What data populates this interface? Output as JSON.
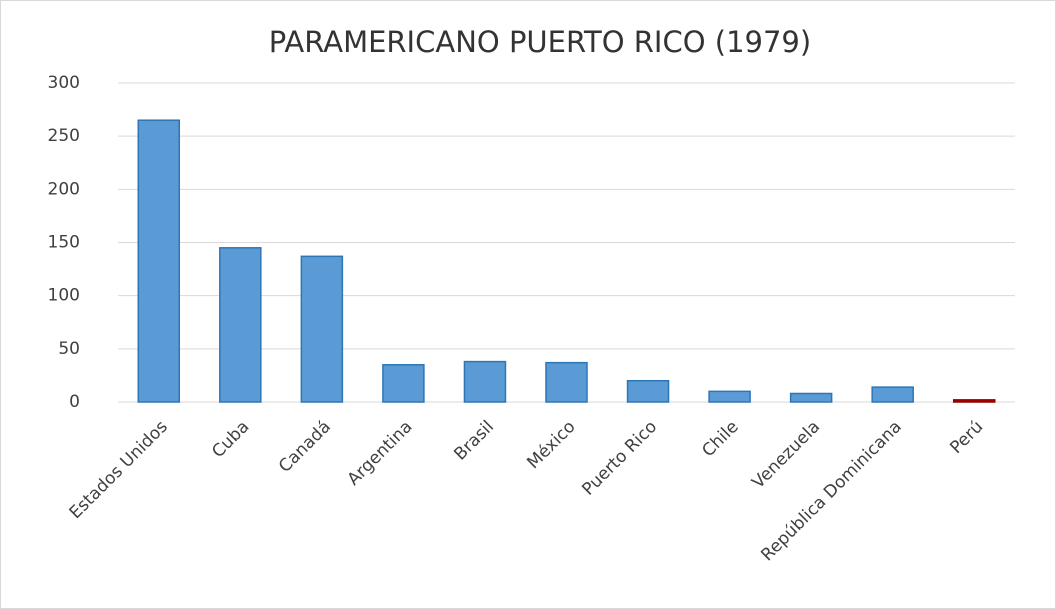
{
  "chart_data": {
    "type": "bar",
    "title": "PARAMERICANO PUERTO RICO (1979)",
    "categories": [
      "Estados Unidos",
      "Cuba",
      "Canadá",
      "Argentina",
      "Brasil",
      "México",
      "Puerto Rico",
      "Chile",
      "Venezuela",
      "República Dominicana",
      "Perú"
    ],
    "values": [
      265,
      145,
      137,
      35,
      38,
      37,
      20,
      10,
      8,
      14,
      2
    ],
    "colors": [
      "#5b9bd5",
      "#5b9bd5",
      "#5b9bd5",
      "#5b9bd5",
      "#5b9bd5",
      "#5b9bd5",
      "#5b9bd5",
      "#5b9bd5",
      "#5b9bd5",
      "#5b9bd5",
      "#c00000"
    ],
    "ylim": [
      0,
      300
    ],
    "yticks": [
      0,
      50,
      100,
      150,
      200,
      250,
      300
    ],
    "grid": true
  }
}
